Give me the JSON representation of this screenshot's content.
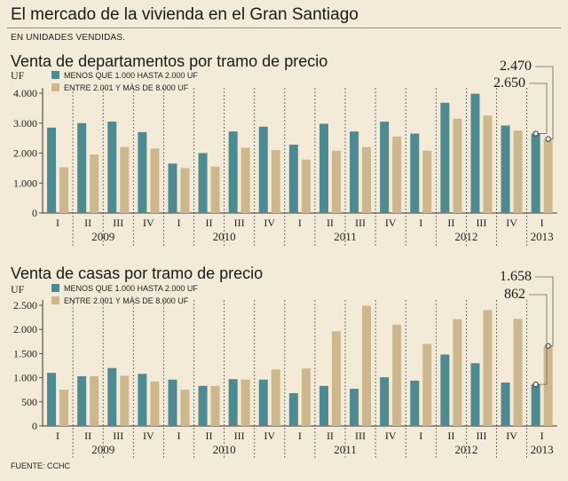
{
  "title": "El mercado de la vivienda en el Gran Santiago",
  "subtitle": "EN UNIDADES VENDIDAS.",
  "source": "FUENTE: CCHC",
  "colors": {
    "series_low": "#4e8a92",
    "series_high": "#cdb78c",
    "background": "#f3ead8"
  },
  "chart_data": [
    {
      "type": "bar",
      "title": "Venta de departamentos por tramo de precio",
      "ylabel": "UF",
      "ylim": [
        0,
        4000
      ],
      "yticks": [
        0,
        1000,
        2000,
        3000,
        4000
      ],
      "ytick_labels": [
        "0",
        "1.000",
        "2.000",
        "3.000",
        "4.000"
      ],
      "categories": [
        "I",
        "II",
        "III",
        "IV",
        "I",
        "II",
        "III",
        "IV",
        "I",
        "II",
        "III",
        "IV",
        "I",
        "II",
        "III",
        "IV",
        "I"
      ],
      "years": [
        {
          "label": "2009",
          "start": 0,
          "end": 3
        },
        {
          "label": "2010",
          "start": 4,
          "end": 7
        },
        {
          "label": "2011",
          "start": 8,
          "end": 11
        },
        {
          "label": "2012",
          "start": 12,
          "end": 15
        },
        {
          "label": "2013",
          "start": 16,
          "end": 16
        }
      ],
      "series": [
        {
          "name": "MENOS QUE 1.000 HASTA 2.000 UF",
          "values": [
            2850,
            3000,
            3050,
            2700,
            1650,
            2000,
            2720,
            2880,
            2280,
            2980,
            2720,
            3050,
            2650,
            3680,
            3980,
            2920,
            2650
          ]
        },
        {
          "name": "ENTRE 2.001 Y MÁS DE 8.000 UF",
          "values": [
            1520,
            1950,
            2200,
            2150,
            1500,
            1550,
            2180,
            2100,
            1780,
            2080,
            2200,
            2550,
            2080,
            3150,
            3250,
            2750,
            2470
          ]
        }
      ],
      "annotations": [
        {
          "label": "2.470",
          "series": 1,
          "index": 16
        },
        {
          "label": "2.650",
          "series": 0,
          "index": 16
        }
      ],
      "legend": "top-left"
    },
    {
      "type": "bar",
      "title": "Venta de casas por tramo de precio",
      "ylabel": "UF",
      "ylim": [
        0,
        2500
      ],
      "yticks": [
        0,
        500,
        1000,
        1500,
        2000,
        2500
      ],
      "ytick_labels": [
        "0",
        "500",
        "1.000",
        "1.500",
        "2.000",
        "2.500"
      ],
      "categories": [
        "I",
        "II",
        "III",
        "IV",
        "I",
        "II",
        "III",
        "IV",
        "I",
        "II",
        "III",
        "IV",
        "I",
        "II",
        "III",
        "IV",
        "I"
      ],
      "years": [
        {
          "label": "2009",
          "start": 0,
          "end": 3
        },
        {
          "label": "2010",
          "start": 4,
          "end": 7
        },
        {
          "label": "2011",
          "start": 8,
          "end": 11
        },
        {
          "label": "2012",
          "start": 12,
          "end": 15
        },
        {
          "label": "2013",
          "start": 16,
          "end": 16
        }
      ],
      "series": [
        {
          "name": "MENOS QUE 1.000 HASTA 2.000 UF",
          "values": [
            1100,
            1030,
            1200,
            1080,
            960,
            830,
            970,
            960,
            680,
            830,
            770,
            1010,
            940,
            1480,
            1300,
            900,
            862
          ]
        },
        {
          "name": "ENTRE 2.001 Y MÁS DE 8.000 UF",
          "values": [
            750,
            1030,
            1040,
            920,
            750,
            830,
            960,
            1170,
            1190,
            1960,
            2490,
            2100,
            1700,
            2210,
            2400,
            2220,
            1658
          ]
        }
      ],
      "annotations": [
        {
          "label": "1.658",
          "series": 1,
          "index": 16
        },
        {
          "label": "862",
          "series": 0,
          "index": 16
        }
      ],
      "legend": "top-left"
    }
  ]
}
